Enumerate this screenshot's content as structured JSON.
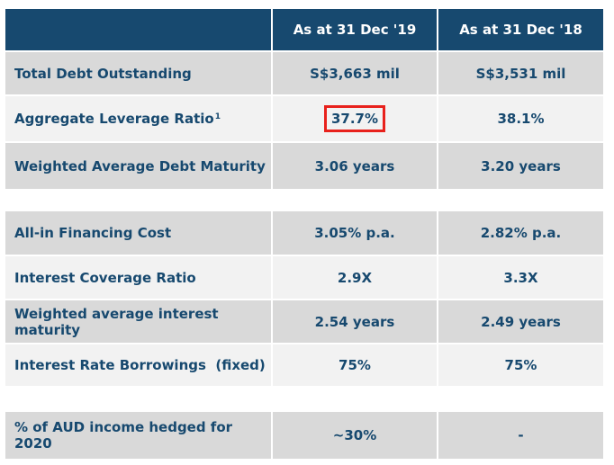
{
  "header": {
    "col1": "As at 31 Dec '19",
    "col2": "As at 31 Dec '18"
  },
  "rows": [
    {
      "label": "Total Debt Outstanding",
      "v19": "S$3,663 mil",
      "v18": "S$3,531 mil"
    },
    {
      "label": "Aggregate Leverage Ratio",
      "footnote": "1",
      "v19": "37.7%",
      "v18": "38.1%"
    },
    {
      "label": "Weighted Average Debt Maturity",
      "v19": "3.06 years",
      "v18": "3.20 years"
    },
    {
      "label": "All-in Financing Cost",
      "v19": "3.05% p.a.",
      "v18": "2.82% p.a."
    },
    {
      "label": "Interest Coverage Ratio",
      "v19": "2.9X",
      "v18": "3.3X"
    },
    {
      "label": "Weighted average interest maturity",
      "v19": "2.54 years",
      "v18": "2.49 years"
    },
    {
      "label": "Interest Rate Borrowings  (fixed)",
      "v19": "75%",
      "v18": "75%"
    },
    {
      "label": "% of AUD income hedged for 2020",
      "v19": "~30%",
      "v18": "-"
    }
  ],
  "colors": {
    "header_bg": "#17496f",
    "text": "#17496f",
    "row_dark": "#d9d9d9",
    "row_light": "#f2f2f2",
    "highlight": "#e8211c"
  }
}
